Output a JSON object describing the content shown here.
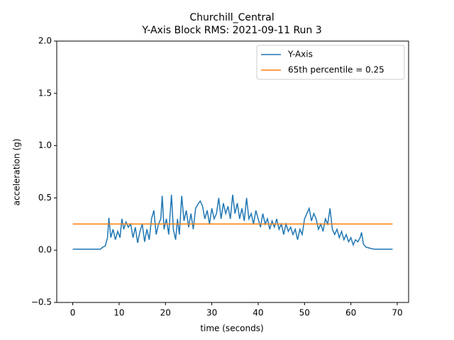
{
  "chart_data": {
    "type": "line",
    "title": "Churchill_Central",
    "subtitle": "Y-Axis Block RMS: 2021-09-11 Run 3",
    "x_label": "time (seconds)",
    "y_label": "acceleration (g)",
    "xlim": [
      -3.45,
      72.45
    ],
    "ylim": [
      -0.5,
      2.0
    ],
    "xticks": [
      0,
      10,
      20,
      30,
      40,
      50,
      60,
      70
    ],
    "yticks": [
      {
        "value": -0.5,
        "label": "−0.5"
      },
      {
        "value": 0,
        "label": "0.0"
      },
      0.5,
      {
        "value": 1,
        "label": "1.0"
      },
      1.5,
      {
        "value": 2,
        "label": "2.0"
      }
    ],
    "legend": "upper right",
    "series": [
      {
        "name": "Y-Axis",
        "color": "#1f77b4",
        "x": [
          0,
          6,
          6.5,
          7,
          7.5,
          7.8,
          8.2,
          8.7,
          9.2,
          9.7,
          10.2,
          10.6,
          11,
          11.5,
          12,
          12.5,
          13,
          13.5,
          14,
          14.5,
          15,
          15.5,
          16,
          16.5,
          17,
          17.5,
          18,
          18.5,
          19,
          19.3,
          19.7,
          20.2,
          20.7,
          21.3,
          21.7,
          22.2,
          22.6,
          23,
          23.5,
          24,
          24.5,
          25,
          25.5,
          26,
          26.5,
          27,
          27.5,
          28,
          28.5,
          29,
          29.5,
          30,
          30.5,
          31,
          31.5,
          32,
          32.5,
          33,
          33.5,
          34,
          34.5,
          35,
          35.5,
          36,
          36.5,
          37,
          37.5,
          38,
          38.5,
          39,
          39.5,
          40,
          40.5,
          41,
          41.5,
          42,
          42.5,
          43,
          43.5,
          44,
          44.5,
          45,
          45.5,
          46,
          46.5,
          47,
          47.5,
          48,
          48.5,
          49,
          49.5,
          50,
          50.5,
          51,
          51.5,
          52,
          52.5,
          53,
          53.5,
          54,
          54.5,
          55,
          55.5,
          56,
          56.5,
          57,
          57.5,
          58,
          58.5,
          59,
          59.5,
          60,
          60.5,
          61,
          61.5,
          62,
          62.3,
          62.7,
          63.2,
          64,
          65,
          69
        ],
        "values": [
          0.01,
          0.01,
          0.03,
          0.04,
          0.12,
          0.31,
          0.12,
          0.2,
          0.1,
          0.18,
          0.12,
          0.3,
          0.2,
          0.27,
          0.22,
          0.25,
          0.12,
          0.22,
          0.07,
          0.18,
          0.25,
          0.08,
          0.2,
          0.1,
          0.3,
          0.38,
          0.15,
          0.25,
          0.3,
          0.52,
          0.2,
          0.3,
          0.15,
          0.53,
          0.2,
          0.1,
          0.3,
          0.15,
          0.52,
          0.28,
          0.38,
          0.22,
          0.35,
          0.2,
          0.4,
          0.44,
          0.47,
          0.42,
          0.3,
          0.38,
          0.25,
          0.4,
          0.3,
          0.35,
          0.5,
          0.3,
          0.45,
          0.35,
          0.42,
          0.3,
          0.53,
          0.35,
          0.45,
          0.3,
          0.4,
          0.28,
          0.5,
          0.3,
          0.35,
          0.25,
          0.38,
          0.3,
          0.22,
          0.35,
          0.25,
          0.3,
          0.2,
          0.28,
          0.22,
          0.3,
          0.2,
          0.25,
          0.15,
          0.25,
          0.18,
          0.22,
          0.15,
          0.2,
          0.1,
          0.2,
          0.15,
          0.3,
          0.35,
          0.4,
          0.28,
          0.35,
          0.3,
          0.2,
          0.25,
          0.18,
          0.3,
          0.25,
          0.4,
          0.2,
          0.15,
          0.2,
          0.12,
          0.18,
          0.1,
          0.15,
          0.08,
          0.12,
          0.05,
          0.1,
          0.08,
          0.12,
          0.17,
          0.06,
          0.03,
          0.02,
          0.01,
          0.01
        ]
      },
      {
        "name": "65th percentile = 0.25",
        "color": "#ff7f0e",
        "x": [
          0,
          69
        ],
        "values": [
          0.25,
          0.25
        ]
      }
    ]
  }
}
